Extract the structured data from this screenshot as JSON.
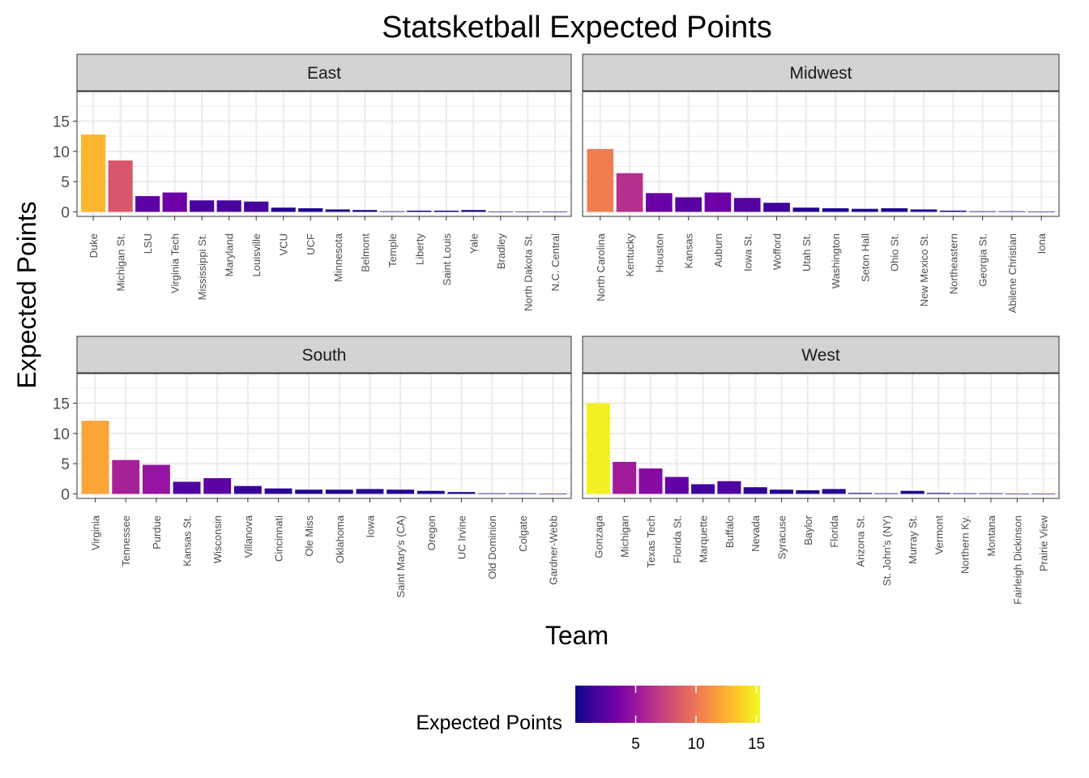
{
  "chart_data": {
    "type": "bar",
    "title": "Statsketball Expected Points",
    "xlabel": "Team",
    "ylabel": "Expected Points",
    "ylim": [
      0,
      15
    ],
    "y_ticks": [
      "0",
      "5",
      "10",
      "15"
    ],
    "grid": true,
    "legend": {
      "title": "Expected Points",
      "placement": "bottom",
      "ticks": [
        "5",
        "10",
        "15"
      ],
      "tick_values": [
        5,
        10,
        15
      ],
      "min": 0,
      "max": 15.3
    },
    "colors": {
      "palette": [
        "#0d0887",
        "#46039f",
        "#7201a8",
        "#9c179e",
        "#bd3786",
        "#d8576b",
        "#ed7953",
        "#fb9f3a",
        "#fdca26",
        "#f0f921"
      ],
      "strip_fill": "#d3d3d3",
      "grid": "#ebebeb",
      "axis": "#333333"
    },
    "panels": [
      {
        "region": "East",
        "categories": [
          "Duke",
          "Michigan St.",
          "LSU",
          "Virginia Tech",
          "Mississippi St.",
          "Maryland",
          "Louisville",
          "VCU",
          "UCF",
          "Minnesota",
          "Belmont",
          "Temple",
          "Liberty",
          "Saint Louis",
          "Yale",
          "Bradley",
          "North Dakota St.",
          "N.C. Central"
        ],
        "values": [
          12.8,
          8.5,
          2.6,
          3.2,
          1.9,
          1.9,
          1.7,
          0.7,
          0.6,
          0.4,
          0.3,
          0.1,
          0.2,
          0.2,
          0.3,
          0.05,
          0.02,
          0.01
        ]
      },
      {
        "region": "Midwest",
        "categories": [
          "North Carolina",
          "Kentucky",
          "Houston",
          "Kansas",
          "Auburn",
          "Iowa St.",
          "Wofford",
          "Utah St.",
          "Washington",
          "Seton Hall",
          "Ohio St.",
          "New Mexico St.",
          "Northeastern",
          "Georgia St.",
          "Abilene Christian",
          "Iona"
        ],
        "values": [
          10.4,
          6.4,
          3.1,
          2.4,
          3.2,
          2.3,
          1.5,
          0.7,
          0.6,
          0.5,
          0.6,
          0.4,
          0.2,
          0.1,
          0.1,
          0.02
        ]
      },
      {
        "region": "South",
        "categories": [
          "Virginia",
          "Tennessee",
          "Purdue",
          "Kansas St.",
          "Wisconsin",
          "Villanova",
          "Cincinnati",
          "Ole Miss",
          "Oklahoma",
          "Iowa",
          "Saint Mary's (CA)",
          "Oregon",
          "UC Irvine",
          "Old Dominion",
          "Colgate",
          "Gardner-Webb"
        ],
        "values": [
          12.1,
          5.6,
          4.8,
          2.0,
          2.6,
          1.3,
          0.9,
          0.7,
          0.7,
          0.8,
          0.7,
          0.5,
          0.3,
          0.1,
          0.1,
          0.02
        ]
      },
      {
        "region": "West",
        "categories": [
          "Gonzaga",
          "Michigan",
          "Texas Tech",
          "Florida St.",
          "Marquette",
          "Buffalo",
          "Nevada",
          "Syracuse",
          "Baylor",
          "Florida",
          "Arizona St.",
          "St. John's (NY)",
          "Murray St.",
          "Vermont",
          "Northern Ky.",
          "Montana",
          "Fairleigh Dickinson",
          "Prairie View"
        ],
        "values": [
          15.0,
          5.3,
          4.2,
          2.8,
          1.6,
          2.1,
          1.1,
          0.7,
          0.6,
          0.8,
          0.15,
          0.1,
          0.5,
          0.15,
          0.1,
          0.1,
          0.02,
          0.01
        ]
      }
    ]
  }
}
